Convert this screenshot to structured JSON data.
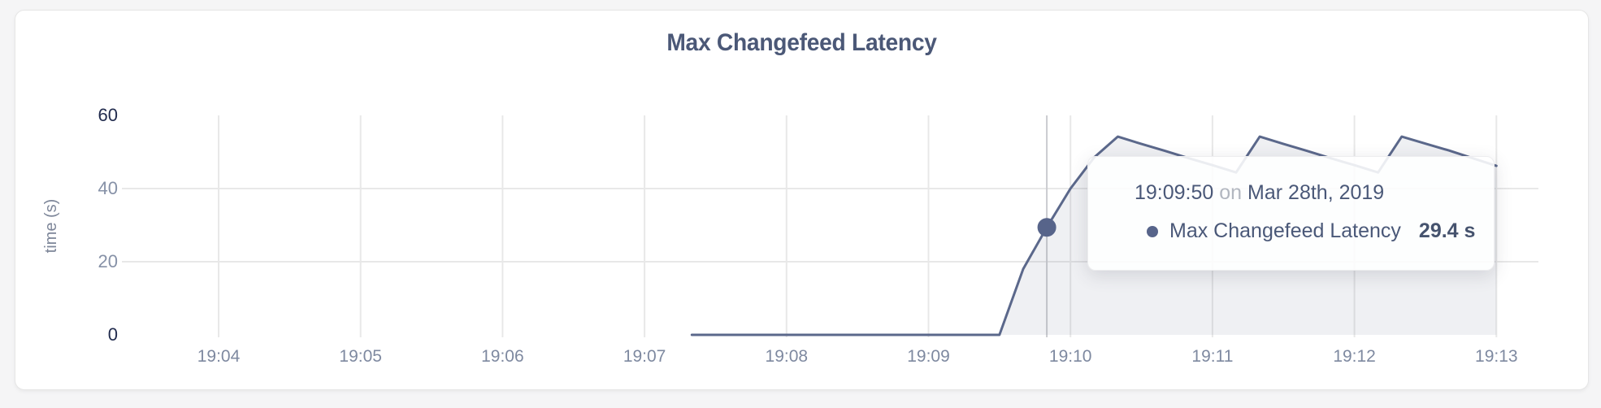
{
  "chart_data": {
    "type": "area",
    "title": "Max Changefeed Latency",
    "xlabel": "",
    "ylabel": "time (s)",
    "ylim": [
      0,
      60
    ],
    "grid": true,
    "x_ticks": [
      "19:04",
      "19:05",
      "19:06",
      "19:07",
      "19:08",
      "19:09",
      "19:10",
      "19:11",
      "19:12",
      "19:13"
    ],
    "y_ticks": [
      {
        "label": "0",
        "value": 0,
        "gridline": false,
        "strong": true
      },
      {
        "label": "20",
        "value": 20,
        "gridline": true,
        "strong": false
      },
      {
        "label": "40",
        "value": 40,
        "gridline": true,
        "strong": false
      },
      {
        "label": "60",
        "value": 60,
        "gridline": false,
        "strong": true
      }
    ],
    "series": [
      {
        "name": "Max Changefeed Latency",
        "unit": "s",
        "points": [
          [
            "19:07:20",
            0
          ],
          [
            "19:09:30",
            0
          ],
          [
            "19:09:40",
            18
          ],
          [
            "19:09:50",
            29.4
          ],
          [
            "19:10:00",
            40
          ],
          [
            "19:10:10",
            48.5
          ],
          [
            "19:10:20",
            54.2
          ],
          [
            "19:10:30",
            52.2
          ],
          [
            "19:10:40",
            50.3
          ],
          [
            "19:10:50",
            48.3
          ],
          [
            "19:11:00",
            46.4
          ],
          [
            "19:11:10",
            44.4
          ],
          [
            "19:11:20",
            54.2
          ],
          [
            "19:11:30",
            52.2
          ],
          [
            "19:11:40",
            50.3
          ],
          [
            "19:11:50",
            48.3
          ],
          [
            "19:12:00",
            46.4
          ],
          [
            "19:12:10",
            44.4
          ],
          [
            "19:12:20",
            54.2
          ],
          [
            "19:12:30",
            52.3
          ],
          [
            "19:12:40",
            50.4
          ],
          [
            "19:12:50",
            48.3
          ],
          [
            "19:13:00",
            46.2
          ]
        ]
      }
    ],
    "hover": {
      "time": "19:09:50",
      "value": 29.4
    }
  },
  "tooltip": {
    "time": "19:09:50",
    "conjunction": "on",
    "date": "Mar 28th, 2019",
    "series_label": "Max Changefeed Latency",
    "value_text": "29.4 s"
  },
  "colors": {
    "title": "#4b5877",
    "line": "#5b688b",
    "area_fill": "rgba(98,109,140,0.10)",
    "hover_dot": "#57648a",
    "gridline": "#e8e8e8",
    "hover_line": "#cbccd0",
    "tick_light": "#8691a7",
    "tick_dark": "#222c4e",
    "card_bg": "#ffffff",
    "page_bg": "#f5f5f6"
  }
}
